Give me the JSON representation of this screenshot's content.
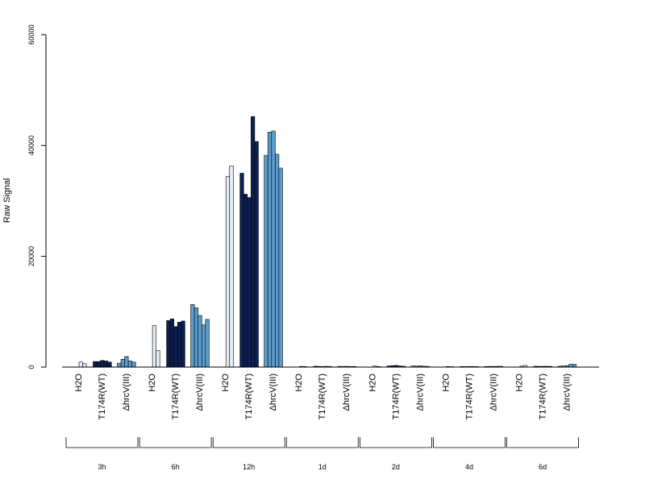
{
  "chart_data": {
    "type": "bar",
    "ylabel": "Raw Signal",
    "ylim": [
      0,
      60000
    ],
    "yticks": [
      0,
      20000,
      40000,
      60000
    ],
    "yticks_labels": [
      "0",
      "20000",
      "40000",
      "60000"
    ],
    "colors": {
      "H2O": "#e6eef7",
      "T174R(WT)": "#0b1f52",
      "ΔhrcV(III)": "#5b9ccc"
    },
    "groups": [
      {
        "label": "3h",
        "conditions": [
          {
            "name": "H2O",
            "values": [
              900,
              600
            ]
          },
          {
            "name": "T174R(WT)",
            "values": [
              1000,
              1000,
              1200,
              1100,
              900
            ]
          },
          {
            "name": "ΔhrcV(III)",
            "values": [
              700,
              1400,
              1900,
              1100,
              900
            ]
          }
        ]
      },
      {
        "label": "6h",
        "conditions": [
          {
            "name": "H2O",
            "values": [
              7500,
              3000
            ]
          },
          {
            "name": "T174R(WT)",
            "values": [
              8400,
              8700,
              7300,
              8100,
              8300
            ]
          },
          {
            "name": "ΔhrcV(III)",
            "values": [
              11300,
              10700,
              9300,
              7600,
              8600
            ]
          }
        ]
      },
      {
        "label": "12h",
        "conditions": [
          {
            "name": "H2O",
            "values": [
              34400,
              36300
            ]
          },
          {
            "name": "T174R(WT)",
            "values": [
              35000,
              31200,
              30600,
              45200,
              40700
            ]
          },
          {
            "name": "ΔhrcV(III)",
            "values": [
              38200,
              42400,
              42600,
              38400,
              35900
            ]
          }
        ]
      },
      {
        "label": "1d",
        "conditions": [
          {
            "name": "H2O",
            "values": [
              120,
              100
            ]
          },
          {
            "name": "T174R(WT)",
            "values": [
              150,
              120,
              100,
              130,
              110
            ]
          },
          {
            "name": "ΔhrcV(III)",
            "values": [
              120,
              110,
              130,
              100,
              110
            ]
          }
        ]
      },
      {
        "label": "2d",
        "conditions": [
          {
            "name": "H2O",
            "values": [
              180,
              100
            ]
          },
          {
            "name": "T174R(WT)",
            "values": [
              200,
              250,
              300,
              200,
              150
            ]
          },
          {
            "name": "ΔhrcV(III)",
            "values": [
              200,
              180,
              220,
              150,
              120
            ]
          }
        ]
      },
      {
        "label": "4d",
        "conditions": [
          {
            "name": "H2O",
            "values": [
              100,
              80
            ]
          },
          {
            "name": "T174R(WT)",
            "values": [
              100,
              90,
              110,
              100,
              90
            ]
          },
          {
            "name": "ΔhrcV(III)",
            "values": [
              100,
              120,
              110,
              130,
              140
            ]
          }
        ]
      },
      {
        "label": "6d",
        "conditions": [
          {
            "name": "H2O",
            "values": [
              150,
              300
            ]
          },
          {
            "name": "T174R(WT)",
            "values": [
              150,
              120,
              130,
              140,
              120
            ]
          },
          {
            "name": "ΔhrcV(III)",
            "values": [
              150,
              200,
              250,
              500,
              500
            ]
          }
        ]
      }
    ]
  }
}
